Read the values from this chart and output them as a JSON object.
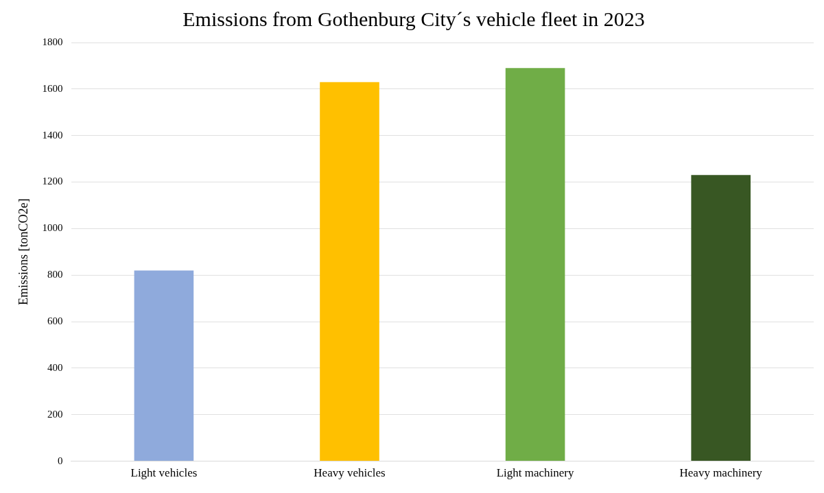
{
  "chart_data": {
    "type": "bar",
    "title": "Emissions from Gothenburg City´s vehicle fleet in 2023",
    "ylabel": "Emissions [tonCO2e]",
    "categories": [
      "Light vehicles",
      "Heavy vehicles",
      "Light machinery",
      "Heavy machinery"
    ],
    "values": [
      820,
      1630,
      1690,
      1230
    ],
    "colors": [
      "#8faadc",
      "#ffc000",
      "#70ad47",
      "#385723"
    ],
    "ylim": [
      0,
      1800
    ],
    "yticks": [
      0,
      200,
      400,
      600,
      800,
      1000,
      1200,
      1400,
      1600,
      1800
    ],
    "grid": "y",
    "legend": false
  }
}
